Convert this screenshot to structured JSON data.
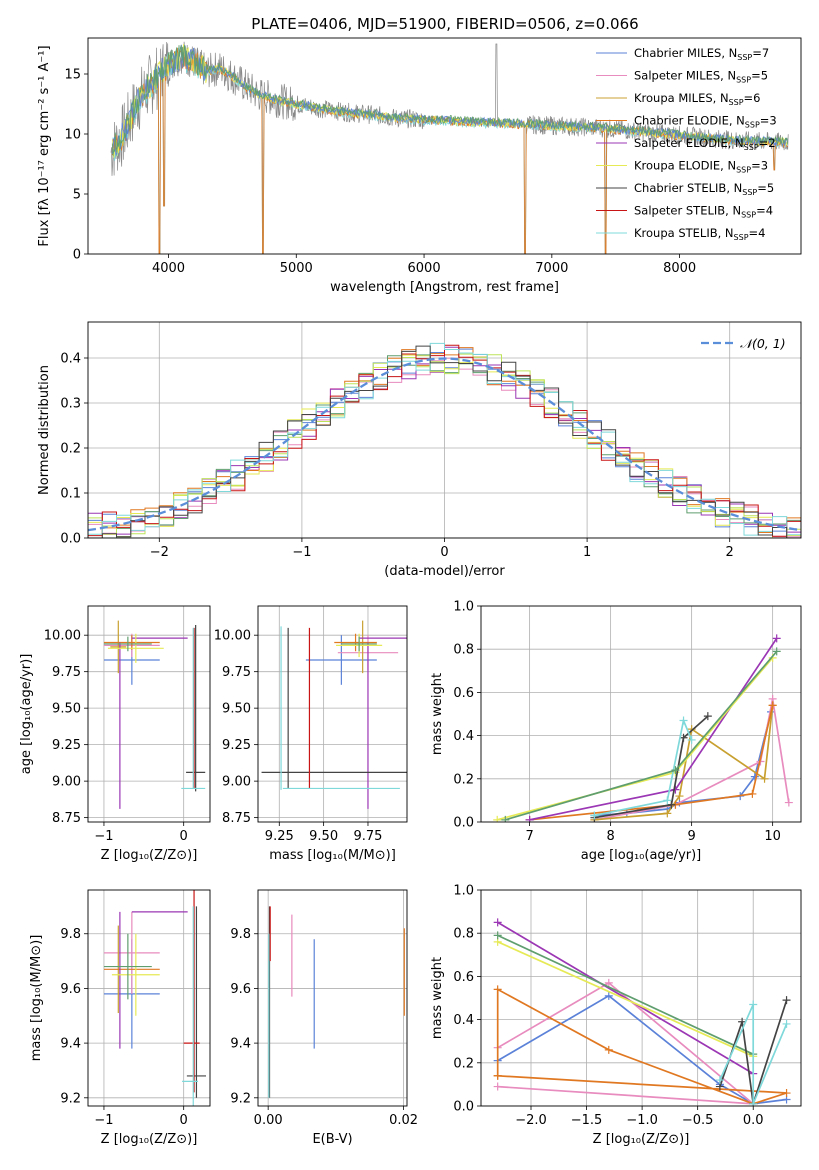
{
  "figure_title": "PLATE=0406, MJD=51900, FIBERID=0506, z=0.066",
  "colors": {
    "Chabrier MILES": "#5b82d8",
    "Salpeter MILES": "#e88bbe",
    "Kroupa MILES": "#c8a030",
    "Chabrier ELODIE": "#e07822",
    "Salpeter ELODIE": "#9b36b4",
    "Kroupa ELODIE": "#e6ea55",
    "Chabrier STELIB": "#444444",
    "Salpeter STELIB": "#c81414",
    "Kroupa STELIB": "#7fd8da",
    "extra1": "#5f9e6e",
    "extra2": "#bde35a",
    "gauss": "#5b8ed8",
    "data": "#888888"
  },
  "chart_data": [
    {
      "id": "spectrum",
      "type": "line",
      "title": "PLATE=0406, MJD=51900, FIBERID=0506, z=0.066",
      "xlabel": "wavelength [Angstrom, rest frame]",
      "ylabel": "Flux [fλ 10⁻¹⁷ erg cm⁻² s⁻¹ A⁻¹]",
      "xlim": [
        3370,
        8950
      ],
      "ylim": [
        0,
        18
      ],
      "xticks": [
        "4000",
        "5000",
        "6000",
        "7000",
        "8000"
      ],
      "yticks": [
        "0",
        "5",
        "10",
        "15"
      ],
      "grid": false,
      "legend_position": "top-right",
      "legend": [
        {
          "label": "Chabrier MILES, N",
          "sub": "SSP",
          "n": "=7"
        },
        {
          "label": "Salpeter MILES, N",
          "sub": "SSP",
          "n": "=5"
        },
        {
          "label": "Kroupa MILES, N",
          "sub": "SSP",
          "n": "=6"
        },
        {
          "label": "Chabrier ELODIE, N",
          "sub": "SSP",
          "n": "=3"
        },
        {
          "label": "Salpeter ELODIE, N",
          "sub": "SSP",
          "n": "=2"
        },
        {
          "label": "Kroupa ELODIE, N",
          "sub": "SSP",
          "n": "=3"
        },
        {
          "label": "Chabrier STELIB, N",
          "sub": "SSP",
          "n": "=5"
        },
        {
          "label": "Salpeter STELIB, N",
          "sub": "SSP",
          "n": "=4"
        },
        {
          "label": "Kroupa STELIB, N",
          "sub": "SSP",
          "n": "=4"
        }
      ],
      "continuum": [
        [
          3550,
          8.5
        ],
        [
          3650,
          10.0
        ],
        [
          3750,
          12.5
        ],
        [
          3850,
          14.0
        ],
        [
          3950,
          15.2
        ],
        [
          4000,
          15.8
        ],
        [
          4100,
          16.5
        ],
        [
          4200,
          16.0
        ],
        [
          4300,
          15.2
        ],
        [
          4400,
          15.5
        ],
        [
          4500,
          14.8
        ],
        [
          4600,
          14.0
        ],
        [
          4700,
          13.3
        ],
        [
          4800,
          13.0
        ],
        [
          4900,
          12.7
        ],
        [
          5000,
          12.5
        ],
        [
          5200,
          12.1
        ],
        [
          5400,
          11.8
        ],
        [
          5600,
          11.6
        ],
        [
          5800,
          11.3
        ],
        [
          6000,
          11.2
        ],
        [
          6200,
          11.1
        ],
        [
          6400,
          11.0
        ],
        [
          6600,
          10.9
        ],
        [
          6800,
          10.8
        ],
        [
          7000,
          10.7
        ],
        [
          7200,
          10.6
        ],
        [
          7400,
          10.5
        ],
        [
          7600,
          10.3
        ],
        [
          7800,
          10.1
        ],
        [
          8000,
          9.9
        ],
        [
          8200,
          9.7
        ],
        [
          8400,
          9.5
        ],
        [
          8600,
          9.4
        ],
        [
          8850,
          9.3
        ]
      ],
      "dips": [
        [
          3930,
          0
        ],
        [
          3965,
          4
        ],
        [
          4740,
          0
        ],
        [
          6790,
          0
        ],
        [
          7420,
          0
        ],
        [
          8740,
          7
        ]
      ],
      "spike": [
        6565,
        17.5
      ]
    },
    {
      "id": "residuals",
      "type": "line",
      "xlabel": "(data-model)/error",
      "ylabel": "Normed distribution",
      "xlim": [
        -2.5,
        2.5
      ],
      "ylim": [
        0,
        0.48
      ],
      "xticks": [
        "−2",
        "−1",
        "0",
        "1",
        "2"
      ],
      "yticks": [
        "0.0",
        "0.1",
        "0.2",
        "0.3",
        "0.4"
      ],
      "grid": true,
      "legend_position": "top-right",
      "legend_label": "𝒩(0, 1)",
      "bin_width": 0.1
    },
    {
      "id": "age-vs-Z",
      "type": "scatter",
      "xlabel": "Z [log₁₀(Z/Z⊙)]",
      "ylabel": "age  [log₁₀(age/yr)]",
      "xlim": [
        -1.2,
        0.33
      ],
      "ylim": [
        8.72,
        10.2
      ],
      "xticks": [
        "−1",
        "0"
      ],
      "yticks": [
        "8.75",
        "9.00",
        "9.25",
        "9.50",
        "9.75",
        "10.00"
      ],
      "grid": true,
      "points": [
        {
          "m": "Chabrier MILES",
          "x": -0.65,
          "xe": 0.35,
          "y": 9.83,
          "ye": 0.17
        },
        {
          "m": "Salpeter MILES",
          "x": -0.65,
          "xe": 0.35,
          "y": 9.93,
          "ye": 0.08
        },
        {
          "m": "Kroupa MILES",
          "x": -0.82,
          "xe": 0.1,
          "y": 9.92,
          "ye": 0.18
        },
        {
          "m": "Chabrier ELODIE",
          "x": -0.65,
          "xe": 0.35,
          "y": 9.95,
          "ye": 0.05
        },
        {
          "m": "Salpeter ELODIE",
          "x": -0.8,
          "xe": 0.0,
          "y": 9.38,
          "ye": 0.57
        },
        {
          "m": "Salpeter ELODIE",
          "x": -0.3,
          "xe": 0.35,
          "y": 9.98,
          "ye": 0.0
        },
        {
          "m": "Kroupa ELODIE",
          "x": -0.6,
          "xe": 0.35,
          "y": 9.91,
          "ye": 0.1
        },
        {
          "m": "Chabrier STELIB",
          "x": 0.15,
          "xe": 0.12,
          "y": 9.06,
          "ye": 0.0
        },
        {
          "m": "Chabrier STELIB",
          "x": 0.15,
          "xe": 0.0,
          "y": 9.5,
          "ye": 0.57
        },
        {
          "m": "Salpeter STELIB",
          "x": 0.13,
          "xe": 0.0,
          "y": 9.5,
          "ye": 0.55
        },
        {
          "m": "Kroupa STELIB",
          "x": 0.12,
          "xe": 0.15,
          "y": 8.95,
          "ye": 0.0
        },
        {
          "m": "Kroupa STELIB",
          "x": 0.12,
          "xe": 0.0,
          "y": 9.5,
          "ye": 0.55
        },
        {
          "m": "extra1",
          "x": -0.7,
          "xe": 0.3,
          "y": 9.94,
          "ye": 0.05
        }
      ]
    },
    {
      "id": "age-vs-mass",
      "type": "scatter",
      "xlabel": "mass [log₁₀(M/M⊙)]",
      "ylabel": "",
      "xlim": [
        9.13,
        9.97
      ],
      "ylim": [
        8.72,
        10.2
      ],
      "xticks": [
        "9.25",
        "9.50",
        "9.75"
      ],
      "yticks": [
        "8.75",
        "9.00",
        "9.25",
        "9.50",
        "9.75",
        "10.00"
      ],
      "grid": true,
      "points": [
        {
          "m": "Chabrier MILES",
          "x": 9.6,
          "xe": 0.2,
          "y": 9.83,
          "ye": 0.17
        },
        {
          "m": "Salpeter MILES",
          "x": 9.75,
          "xe": 0.17,
          "y": 9.88,
          "ye": 0.12
        },
        {
          "m": "Kroupa MILES",
          "x": 9.72,
          "xe": 0.0,
          "y": 9.92,
          "ye": 0.18
        },
        {
          "m": "Chabrier ELODIE",
          "x": 9.68,
          "xe": 0.12,
          "y": 9.95,
          "ye": 0.06
        },
        {
          "m": "Salpeter ELODIE",
          "x": 9.75,
          "xe": 0.0,
          "y": 9.38,
          "ye": 0.57
        },
        {
          "m": "Salpeter ELODIE",
          "x": 9.85,
          "xe": 0.15,
          "y": 9.98,
          "ye": 0.0
        },
        {
          "m": "Kroupa ELODIE",
          "x": 9.7,
          "xe": 0.13,
          "y": 9.93,
          "ye": 0.08
        },
        {
          "m": "Chabrier STELIB",
          "x": 9.6,
          "xe": 0.45,
          "y": 9.06,
          "ye": 0.0
        },
        {
          "m": "Chabrier STELIB",
          "x": 9.3,
          "xe": 0.0,
          "y": 9.5,
          "ye": 0.55
        },
        {
          "m": "Salpeter STELIB",
          "x": 9.42,
          "xe": 0.0,
          "y": 9.5,
          "ye": 0.55
        },
        {
          "m": "Kroupa STELIB",
          "x": 9.6,
          "xe": 0.33,
          "y": 8.95,
          "ye": 0.0
        },
        {
          "m": "Kroupa STELIB",
          "x": 9.26,
          "xe": 0.0,
          "y": 9.5,
          "ye": 0.56
        },
        {
          "m": "extra1",
          "x": 9.7,
          "xe": 0.1,
          "y": 9.94,
          "ye": 0.05
        }
      ]
    },
    {
      "id": "massweight-vs-age",
      "type": "line",
      "xlabel": "age  [log₁₀(age/yr)]",
      "ylabel": "mass weight",
      "xlim": [
        6.4,
        10.35
      ],
      "ylim": [
        0,
        1.0
      ],
      "xticks": [
        "7",
        "8",
        "9",
        "10"
      ],
      "yticks": [
        "0.0",
        "0.2",
        "0.4",
        "0.6",
        "0.8",
        "1.0"
      ],
      "grid": true,
      "series": [
        {
          "m": "Chabrier MILES",
          "x": [
            7.8,
            8.2,
            8.7,
            8.85,
            9.6,
            9.78,
            9.98
          ],
          "y": [
            0.03,
            0.04,
            0.06,
            0.09,
            0.12,
            0.21,
            0.51
          ]
        },
        {
          "m": "Salpeter MILES",
          "x": [
            7.8,
            8.8,
            9.85,
            10.0,
            10.2
          ],
          "y": [
            0.01,
            0.08,
            0.28,
            0.57,
            0.09
          ]
        },
        {
          "m": "Kroupa MILES",
          "x": [
            7.8,
            8.7,
            8.85,
            9.0,
            9.9,
            10.0
          ],
          "y": [
            0.01,
            0.04,
            0.12,
            0.43,
            0.2,
            0.54
          ]
        },
        {
          "m": "Chabrier ELODIE",
          "x": [
            7.0,
            8.8,
            9.75,
            10.0
          ],
          "y": [
            0.01,
            0.08,
            0.13,
            0.54
          ]
        },
        {
          "m": "Salpeter ELODIE",
          "x": [
            7.0,
            8.8,
            10.05
          ],
          "y": [
            0.01,
            0.15,
            0.85
          ]
        },
        {
          "m": "Kroupa ELODIE",
          "x": [
            6.6,
            8.8,
            10.0
          ],
          "y": [
            0.01,
            0.23,
            0.76
          ]
        },
        {
          "m": "Chabrier STELIB",
          "x": [
            7.8,
            8.75,
            8.9,
            9.2
          ],
          "y": [
            0.02,
            0.08,
            0.39,
            0.49
          ]
        },
        {
          "m": "Kroupa STELIB",
          "x": [
            7.8,
            8.7,
            8.9,
            9.0
          ],
          "y": [
            0.03,
            0.1,
            0.47,
            0.38
          ]
        },
        {
          "m": "extra1",
          "x": [
            6.7,
            8.8,
            10.05
          ],
          "y": [
            0.01,
            0.24,
            0.79
          ]
        }
      ]
    },
    {
      "id": "mass-vs-Z",
      "type": "scatter",
      "xlabel": "Z [log₁₀(Z/Z⊙)]",
      "ylabel": "mass [log₁₀(M/M⊙)]",
      "xlim": [
        -1.2,
        0.33
      ],
      "ylim": [
        9.17,
        9.96
      ],
      "xticks": [
        "−1",
        "0"
      ],
      "yticks": [
        "9.2",
        "9.4",
        "9.6",
        "9.8"
      ],
      "grid": true,
      "points": [
        {
          "m": "Chabrier MILES",
          "x": -0.65,
          "xe": 0.35,
          "y": 9.58,
          "ye": 0.2
        },
        {
          "m": "Salpeter MILES",
          "x": -0.65,
          "xe": 0.35,
          "y": 9.73,
          "ye": 0.15
        },
        {
          "m": "Kroupa MILES",
          "x": -0.82,
          "xe": 0.0,
          "y": 9.67,
          "ye": 0.16
        },
        {
          "m": "Chabrier ELODIE",
          "x": -0.65,
          "xe": 0.35,
          "y": 9.67,
          "ye": 0.0
        },
        {
          "m": "Salpeter ELODIE",
          "x": -0.8,
          "xe": 0.0,
          "y": 9.63,
          "ye": 0.25
        },
        {
          "m": "Salpeter ELODIE",
          "x": -0.3,
          "xe": 0.35,
          "y": 9.88,
          "ye": 0.0
        },
        {
          "m": "Kroupa ELODIE",
          "x": -0.6,
          "xe": 0.3,
          "y": 9.65,
          "ye": 0.15
        },
        {
          "m": "Chabrier STELIB",
          "x": 0.16,
          "xe": 0.12,
          "y": 9.28,
          "ye": 0.0
        },
        {
          "m": "Chabrier STELIB",
          "x": 0.16,
          "xe": 0.0,
          "y": 9.55,
          "ye": 0.35
        },
        {
          "m": "Salpeter STELIB",
          "x": 0.13,
          "xe": 0.0,
          "y": 9.6,
          "ye": 0.38
        },
        {
          "m": "Salpeter STELIB",
          "x": 0.1,
          "xe": 0.1,
          "y": 9.4,
          "ye": 0.0
        },
        {
          "m": "Kroupa STELIB",
          "x": 0.08,
          "xe": 0.1,
          "y": 9.26,
          "ye": 0.0
        },
        {
          "m": "Kroupa STELIB",
          "x": 0.12,
          "xe": 0.0,
          "y": 9.5,
          "ye": 0.4
        },
        {
          "m": "extra1",
          "x": -0.7,
          "xe": 0.3,
          "y": 9.68,
          "ye": 0.12
        }
      ]
    },
    {
      "id": "mass-vs-ebv",
      "type": "scatter",
      "xlabel": "E(B-V)",
      "ylabel": "",
      "xlim": [
        -0.0015,
        0.0205
      ],
      "ylim": [
        9.17,
        9.96
      ],
      "xticks": [
        "0.00",
        "0.02"
      ],
      "yticks": [
        "9.2",
        "9.4",
        "9.6",
        "9.8"
      ],
      "grid": true,
      "points": [
        {
          "m": "Chabrier MILES",
          "x": 0.0068,
          "xe": 0,
          "y": 9.58,
          "ye": 0.2
        },
        {
          "m": "Salpeter MILES",
          "x": 0.0035,
          "xe": 0,
          "y": 9.72,
          "ye": 0.15
        },
        {
          "m": "Chabrier ELODIE",
          "x": 0.0201,
          "xe": 0,
          "y": 9.66,
          "ye": 0.16
        },
        {
          "m": "Chabrier STELIB",
          "x": 0.0002,
          "xe": 0,
          "y": 9.55,
          "ye": 0.35
        },
        {
          "m": "Salpeter STELIB",
          "x": 0.0003,
          "xe": 0,
          "y": 9.8,
          "ye": 0.1
        },
        {
          "m": "Kroupa STELIB",
          "x": 0.0001,
          "xe": 0,
          "y": 9.5,
          "ye": 0.3
        }
      ]
    },
    {
      "id": "massweight-vs-Z",
      "type": "line",
      "xlabel": "Z [log₁₀(Z/Z⊙)]",
      "ylabel": "mass weight",
      "xlim": [
        -2.45,
        0.43
      ],
      "ylim": [
        0,
        1.0
      ],
      "xticks": [
        "−2.0",
        "−1.5",
        "−1.0",
        "−0.5",
        "0.0"
      ],
      "yticks": [
        "0.0",
        "0.2",
        "0.4",
        "0.6",
        "0.8",
        "1.0"
      ],
      "grid": true,
      "series": [
        {
          "m": "Chabrier MILES",
          "x": [
            -2.3,
            -1.3,
            -0.3,
            0.0,
            0.3
          ],
          "y": [
            0.21,
            0.51,
            0.1,
            0.01,
            0.03
          ]
        },
        {
          "m": "Salpeter MILES",
          "x": [
            -2.3,
            -1.3,
            0.0,
            -2.3
          ],
          "y": [
            0.27,
            0.57,
            0.01,
            0.09
          ]
        },
        {
          "m": "Chabrier ELODIE",
          "x": [
            -2.3,
            -2.3,
            -1.3,
            0.0,
            0.3,
            -2.3
          ],
          "y": [
            0.14,
            0.54,
            0.26,
            0.01,
            0.06,
            0.14
          ]
        },
        {
          "m": "Salpeter ELODIE",
          "x": [
            -2.3,
            0.0
          ],
          "y": [
            0.85,
            0.15
          ]
        },
        {
          "m": "Kroupa ELODIE",
          "x": [
            -2.3,
            0.0
          ],
          "y": [
            0.76,
            0.23
          ]
        },
        {
          "m": "extra1",
          "x": [
            -2.3,
            0.0
          ],
          "y": [
            0.79,
            0.24
          ]
        },
        {
          "m": "Chabrier STELIB",
          "x": [
            -0.3,
            -0.1,
            0.0,
            0.3
          ],
          "y": [
            0.09,
            0.39,
            0.01,
            0.49
          ]
        },
        {
          "m": "Kroupa STELIB",
          "x": [
            -0.3,
            0.0,
            0.0,
            0.3
          ],
          "y": [
            0.12,
            0.47,
            0.01,
            0.38
          ]
        }
      ]
    }
  ]
}
